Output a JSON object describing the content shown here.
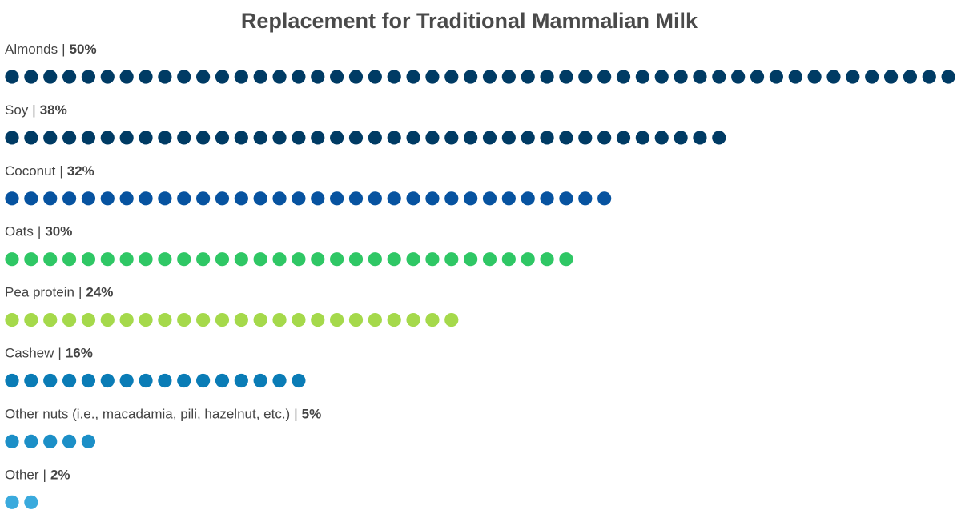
{
  "chart_data": {
    "type": "dot",
    "title": "Replacement for Traditional Mammalian Milk",
    "label_separator": "|",
    "categories": [
      "Almonds",
      "Soy",
      "Coconut",
      "Oats",
      "Pea protein",
      "Cashew",
      "Other nuts (i.e., macadamia, pili, hazelnut, etc.)",
      "Other"
    ],
    "values": [
      50,
      38,
      32,
      30,
      24,
      16,
      5,
      2
    ],
    "value_labels": [
      "50%",
      "38%",
      "32%",
      "30%",
      "24%",
      "16%",
      "5%",
      "2%"
    ],
    "colors": [
      "#003b64",
      "#003b64",
      "#0753a0",
      "#2fc765",
      "#a5d94b",
      "#0a7cb6",
      "#1c8fc7",
      "#3aaadd"
    ]
  }
}
